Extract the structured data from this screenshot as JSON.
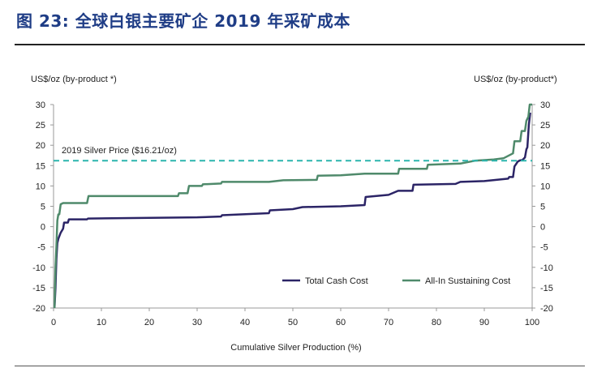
{
  "figure_title": "图 23: 全球白银主要矿企 2019 年采矿成本",
  "chart_data": {
    "type": "line",
    "xlabel": "Cumulative Silver Production (%)",
    "ylabel_left": "US$/oz (by-product *)",
    "ylabel_right": "US$/oz (by-product*)",
    "xlim": [
      0,
      100
    ],
    "ylim": [
      -20,
      30
    ],
    "x_ticks": [
      0,
      10,
      20,
      30,
      40,
      50,
      60,
      70,
      80,
      90,
      100
    ],
    "y_ticks": [
      -20,
      -15,
      -10,
      -5,
      0,
      5,
      10,
      15,
      20,
      25,
      30
    ],
    "grid": false,
    "legend_position": "bottom-right",
    "reference_line": {
      "label": "2019 Silver Price ($16.21/oz)",
      "value": 16.21,
      "color": "#2bb5ad"
    },
    "series": [
      {
        "name": "Total Cash Cost",
        "color": "#2b2466",
        "points": [
          [
            0.2,
            -20
          ],
          [
            0.4,
            -15
          ],
          [
            0.6,
            -8
          ],
          [
            0.8,
            -4
          ],
          [
            1,
            -3
          ],
          [
            1.5,
            -1.5
          ],
          [
            2,
            -0.5
          ],
          [
            2.2,
            1
          ],
          [
            3,
            1
          ],
          [
            3.2,
            1.8
          ],
          [
            7,
            1.8
          ],
          [
            7.2,
            2
          ],
          [
            30,
            2.3
          ],
          [
            35,
            2.5
          ],
          [
            35.2,
            2.8
          ],
          [
            45,
            3.3
          ],
          [
            45.2,
            4
          ],
          [
            50,
            4.3
          ],
          [
            52,
            4.8
          ],
          [
            60,
            5
          ],
          [
            65,
            5.3
          ],
          [
            65.2,
            7.3
          ],
          [
            70,
            7.8
          ],
          [
            72,
            8.8
          ],
          [
            75,
            8.8
          ],
          [
            75.2,
            10.3
          ],
          [
            84,
            10.5
          ],
          [
            85,
            11
          ],
          [
            90,
            11.2
          ],
          [
            95,
            11.8
          ],
          [
            95.2,
            12.2
          ],
          [
            96,
            12.2
          ],
          [
            96.3,
            14.8
          ],
          [
            97,
            16
          ],
          [
            97.5,
            16.3
          ],
          [
            98,
            16.4
          ],
          [
            98.5,
            17
          ],
          [
            98.8,
            19
          ],
          [
            99,
            19.5
          ],
          [
            99.3,
            25
          ],
          [
            99.6,
            28
          ]
        ]
      },
      {
        "name": "All-In Sustaining Cost",
        "color": "#4f8a6b",
        "points": [
          [
            0.2,
            -20
          ],
          [
            0.4,
            -10
          ],
          [
            0.6,
            -5
          ],
          [
            0.8,
            1.5
          ],
          [
            1,
            3
          ],
          [
            1.2,
            3
          ],
          [
            1.5,
            5.5
          ],
          [
            2,
            5.8
          ],
          [
            7,
            5.8
          ],
          [
            7.3,
            7.5
          ],
          [
            26,
            7.5
          ],
          [
            26.2,
            8.2
          ],
          [
            28,
            8.2
          ],
          [
            28.3,
            10
          ],
          [
            31,
            10
          ],
          [
            31.2,
            10.4
          ],
          [
            35,
            10.6
          ],
          [
            35.2,
            11
          ],
          [
            45,
            11
          ],
          [
            48,
            11.4
          ],
          [
            55,
            11.5
          ],
          [
            55.2,
            12.5
          ],
          [
            60,
            12.6
          ],
          [
            65,
            13
          ],
          [
            72,
            13
          ],
          [
            72.2,
            14.2
          ],
          [
            78,
            14.2
          ],
          [
            78.2,
            15.2
          ],
          [
            85,
            15.5
          ],
          [
            88,
            16.2
          ],
          [
            92,
            16.5
          ],
          [
            94,
            16.8
          ],
          [
            96,
            18
          ],
          [
            96.3,
            21
          ],
          [
            97.5,
            21
          ],
          [
            97.8,
            23.5
          ],
          [
            98.5,
            23.5
          ],
          [
            98.8,
            26
          ],
          [
            99.2,
            27
          ],
          [
            99.5,
            30
          ],
          [
            100,
            30
          ]
        ]
      }
    ]
  }
}
